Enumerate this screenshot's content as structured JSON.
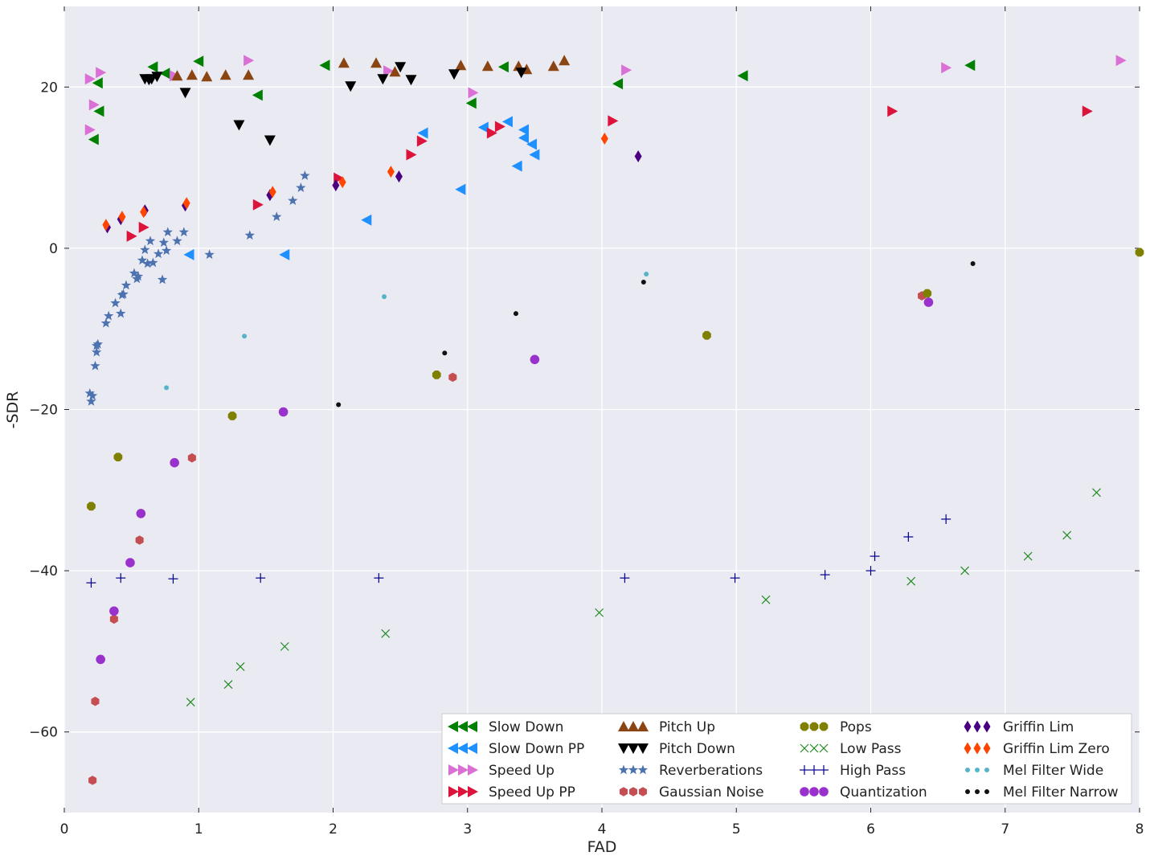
{
  "chart_data": {
    "type": "scatter",
    "xlabel": "FAD",
    "ylabel": "-SDR",
    "xlim": [
      0,
      8
    ],
    "ylim": [
      -70,
      30
    ],
    "xticks": [
      0,
      1,
      2,
      3,
      4,
      5,
      6,
      7,
      8
    ],
    "yticks": [
      -60,
      -40,
      -20,
      0,
      20
    ],
    "grid": true,
    "legend": "lower-right",
    "series": [
      {
        "name": "Slow Down",
        "marker": "triangle-left",
        "color": "#008000",
        "points": [
          [
            0.22,
            13.5
          ],
          [
            0.25,
            20.5
          ],
          [
            0.26,
            17
          ],
          [
            0.66,
            22.5
          ],
          [
            0.75,
            21.7
          ],
          [
            1.0,
            23.2
          ],
          [
            1.44,
            19
          ],
          [
            1.94,
            22.7
          ],
          [
            3.03,
            18
          ],
          [
            3.27,
            22.5
          ],
          [
            4.12,
            20.4
          ],
          [
            5.05,
            21.4
          ],
          [
            6.74,
            22.7
          ]
        ]
      },
      {
        "name": "Slow Down PP",
        "marker": "triangle-left",
        "color": "#1e90ff",
        "points": [
          [
            0.93,
            -0.8
          ],
          [
            1.64,
            -0.8
          ],
          [
            2.25,
            3.5
          ],
          [
            2.67,
            14.3
          ],
          [
            2.95,
            7.3
          ],
          [
            3.12,
            15
          ],
          [
            3.3,
            15.7
          ],
          [
            3.37,
            10.2
          ],
          [
            3.42,
            13.7
          ],
          [
            3.42,
            14.7
          ],
          [
            3.48,
            12.9
          ],
          [
            3.5,
            11.6
          ]
        ]
      },
      {
        "name": "Speed Up",
        "marker": "triangle-right",
        "color": "#da70d6",
        "points": [
          [
            0.19,
            21
          ],
          [
            0.19,
            14.7
          ],
          [
            0.22,
            17.8
          ],
          [
            0.27,
            21.8
          ],
          [
            0.82,
            21.4
          ],
          [
            1.37,
            23.3
          ],
          [
            2.41,
            22
          ],
          [
            3.04,
            19.3
          ],
          [
            4.18,
            22.1
          ],
          [
            6.56,
            22.4
          ],
          [
            7.86,
            23.3
          ]
        ]
      },
      {
        "name": "Speed Up PP",
        "marker": "triangle-right",
        "color": "#dc143c",
        "points": [
          [
            0.5,
            1.5
          ],
          [
            0.59,
            2.6
          ],
          [
            1.44,
            5.4
          ],
          [
            2.04,
            8.7
          ],
          [
            2.58,
            11.6
          ],
          [
            2.66,
            13.3
          ],
          [
            3.18,
            14.3
          ],
          [
            3.24,
            15.1
          ],
          [
            4.08,
            15.8
          ],
          [
            6.16,
            17
          ],
          [
            7.61,
            17
          ]
        ]
      },
      {
        "name": "Pitch Up",
        "marker": "triangle-up",
        "color": "#8b4513",
        "points": [
          [
            0.84,
            21.4
          ],
          [
            0.95,
            21.5
          ],
          [
            1.06,
            21.3
          ],
          [
            1.2,
            21.5
          ],
          [
            1.37,
            21.5
          ],
          [
            2.08,
            23
          ],
          [
            2.32,
            23
          ],
          [
            2.46,
            21.9
          ],
          [
            2.95,
            22.7
          ],
          [
            3.15,
            22.6
          ],
          [
            3.38,
            22.6
          ],
          [
            3.44,
            22.2
          ],
          [
            3.64,
            22.6
          ],
          [
            3.72,
            23.3
          ]
        ]
      },
      {
        "name": "Pitch Down",
        "marker": "triangle-down",
        "color": "#000000",
        "points": [
          [
            0.6,
            21
          ],
          [
            0.63,
            20.9
          ],
          [
            0.65,
            21
          ],
          [
            0.69,
            21.3
          ],
          [
            0.9,
            19.3
          ],
          [
            1.3,
            15.3
          ],
          [
            1.53,
            13.4
          ],
          [
            2.13,
            20.1
          ],
          [
            2.37,
            21
          ],
          [
            2.5,
            22.5
          ],
          [
            2.58,
            20.9
          ],
          [
            2.9,
            21.6
          ],
          [
            3.4,
            21.8
          ]
        ]
      },
      {
        "name": "Reverberations",
        "marker": "star",
        "color": "#4c72b0",
        "points": [
          [
            0.19,
            -18
          ],
          [
            0.2,
            -19
          ],
          [
            0.21,
            -18.3
          ],
          [
            0.23,
            -14.6
          ],
          [
            0.24,
            -12.9
          ],
          [
            0.24,
            -12.1
          ],
          [
            0.25,
            -11.9
          ],
          [
            0.31,
            -9.3
          ],
          [
            0.33,
            -8.4
          ],
          [
            0.38,
            -6.8
          ],
          [
            0.42,
            -8.1
          ],
          [
            0.43,
            -5.8
          ],
          [
            0.44,
            -5.7
          ],
          [
            0.46,
            -4.6
          ],
          [
            0.52,
            -3.1
          ],
          [
            0.54,
            -3.8
          ],
          [
            0.55,
            -3.5
          ],
          [
            0.58,
            -1.5
          ],
          [
            0.6,
            -0.2
          ],
          [
            0.62,
            -1.9
          ],
          [
            0.64,
            0.9
          ],
          [
            0.66,
            -1.8
          ],
          [
            0.7,
            -0.7
          ],
          [
            0.73,
            -3.9
          ],
          [
            0.74,
            0.7
          ],
          [
            0.76,
            -0.3
          ],
          [
            0.77,
            2
          ],
          [
            0.84,
            0.9
          ],
          [
            0.89,
            2
          ],
          [
            1.08,
            -0.8
          ],
          [
            1.38,
            1.6
          ],
          [
            1.58,
            3.9
          ],
          [
            1.7,
            5.9
          ],
          [
            1.76,
            7.5
          ],
          [
            1.79,
            9
          ]
        ]
      },
      {
        "name": "Gaussian Noise",
        "marker": "hexagon",
        "color": "#c44e52",
        "points": [
          [
            0.21,
            -66
          ],
          [
            0.23,
            -56.2
          ],
          [
            0.37,
            -46
          ],
          [
            0.56,
            -36.2
          ],
          [
            0.95,
            -26
          ],
          [
            2.89,
            -16
          ],
          [
            6.38,
            -5.9
          ]
        ]
      },
      {
        "name": "Pops",
        "marker": "octagon",
        "color": "#808000",
        "points": [
          [
            0.2,
            -32
          ],
          [
            0.4,
            -25.9
          ],
          [
            1.25,
            -20.8
          ],
          [
            2.77,
            -15.7
          ],
          [
            4.78,
            -10.8
          ],
          [
            6.42,
            -5.6
          ],
          [
            8.0,
            -0.5
          ]
        ]
      },
      {
        "name": "Low Pass",
        "marker": "x",
        "color": "#228b22",
        "points": [
          [
            0.94,
            -56.3
          ],
          [
            1.22,
            -54.1
          ],
          [
            1.31,
            -51.9
          ],
          [
            1.64,
            -49.4
          ],
          [
            2.39,
            -47.8
          ],
          [
            3.98,
            -45.2
          ],
          [
            5.22,
            -43.6
          ],
          [
            6.3,
            -41.3
          ],
          [
            6.7,
            -40
          ],
          [
            7.17,
            -38.2
          ],
          [
            7.46,
            -35.6
          ],
          [
            7.68,
            -30.3
          ]
        ]
      },
      {
        "name": "High Pass",
        "marker": "plus",
        "color": "#00008b",
        "points": [
          [
            0.2,
            -41.5
          ],
          [
            0.42,
            -40.9
          ],
          [
            0.81,
            -41
          ],
          [
            1.46,
            -40.9
          ],
          [
            2.34,
            -40.9
          ],
          [
            4.17,
            -40.9
          ],
          [
            4.99,
            -40.9
          ],
          [
            5.66,
            -40.5
          ],
          [
            6.0,
            -40
          ],
          [
            6.03,
            -38.2
          ],
          [
            6.28,
            -35.8
          ],
          [
            6.56,
            -33.6
          ]
        ]
      },
      {
        "name": "Quantization",
        "marker": "circle",
        "color": "#9932cc",
        "points": [
          [
            0.27,
            -51
          ],
          [
            0.37,
            -45
          ],
          [
            0.49,
            -39
          ],
          [
            0.57,
            -32.9
          ],
          [
            0.82,
            -26.6
          ],
          [
            1.63,
            -20.3
          ],
          [
            3.5,
            -13.8
          ],
          [
            6.43,
            -6.7
          ]
        ]
      },
      {
        "name": "Griffin Lim",
        "marker": "thin-diamond",
        "color": "#4b0082",
        "points": [
          [
            0.32,
            2.6
          ],
          [
            0.42,
            3.6
          ],
          [
            0.6,
            4.7
          ],
          [
            0.9,
            5.3
          ],
          [
            1.53,
            6.6
          ],
          [
            2.02,
            7.8
          ],
          [
            2.49,
            8.9
          ],
          [
            4.27,
            11.4
          ]
        ]
      },
      {
        "name": "Griffin Lim Zero",
        "marker": "thin-diamond",
        "color": "#ff4500",
        "points": [
          [
            0.31,
            2.9
          ],
          [
            0.43,
            3.9
          ],
          [
            0.59,
            4.5
          ],
          [
            0.91,
            5.6
          ],
          [
            1.55,
            7
          ],
          [
            2.07,
            8.2
          ],
          [
            2.43,
            9.5
          ],
          [
            4.02,
            13.6
          ]
        ]
      },
      {
        "name": "Mel Filter Wide",
        "marker": "dot",
        "color": "#56b4c9",
        "points": [
          [
            0.76,
            -17.3
          ],
          [
            1.34,
            -10.9
          ],
          [
            2.38,
            -6
          ],
          [
            4.33,
            -3.2
          ]
        ]
      },
      {
        "name": "Mel Filter Narrow",
        "marker": "dot",
        "color": "#111111",
        "points": [
          [
            2.04,
            -19.4
          ],
          [
            2.83,
            -13
          ],
          [
            3.36,
            -8.1
          ],
          [
            4.31,
            -4.2
          ],
          [
            6.76,
            -1.9
          ]
        ]
      }
    ]
  }
}
